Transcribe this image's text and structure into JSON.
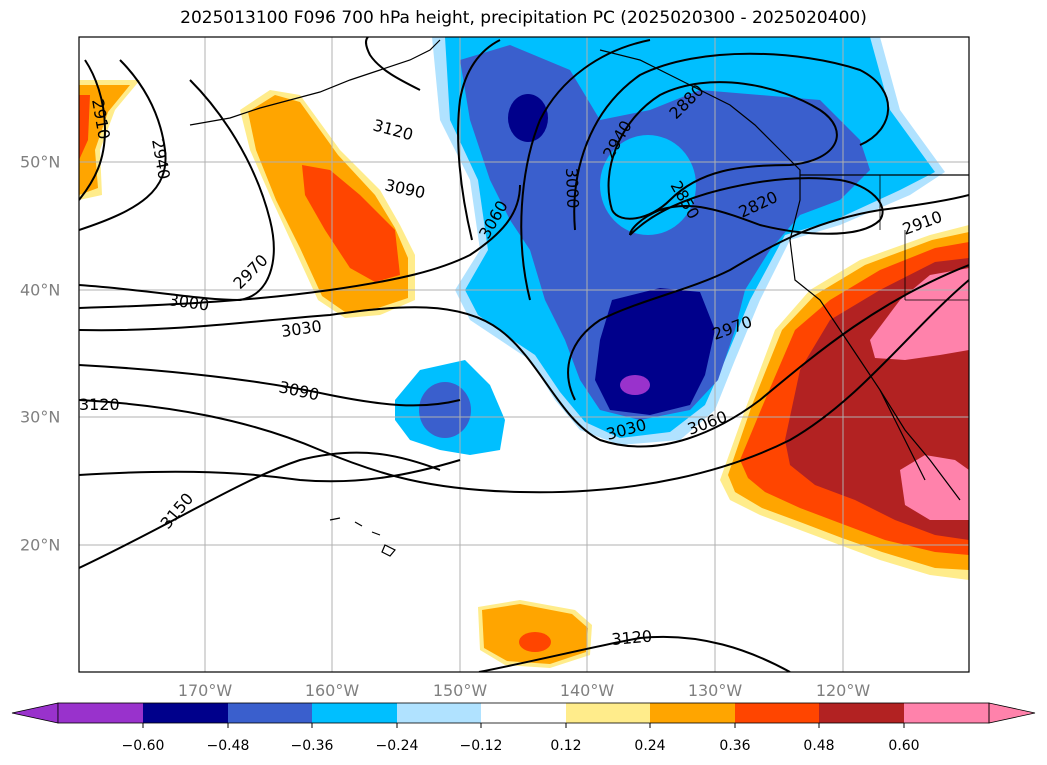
{
  "title": "2025013100 F096 700 hPa height, precipitation PC (2025020300 - 2025020400)",
  "map": {
    "lon_labels": [
      "170°W",
      "160°W",
      "150°W",
      "140°W",
      "130°W",
      "120°W"
    ],
    "lat_labels": [
      "50°N",
      "40°N",
      "30°N",
      "20°N"
    ],
    "contour_labels": [
      "2910",
      "2940",
      "3120",
      "3090",
      "3060",
      "3000",
      "2940",
      "2880",
      "2850",
      "2820",
      "2910",
      "2970",
      "3000",
      "3030",
      "2970",
      "3090",
      "3120",
      "3030",
      "3060",
      "3150",
      "3120"
    ]
  },
  "colorbar": {
    "ticks": [
      "−0.60",
      "−0.48",
      "−0.36",
      "−0.24",
      "−0.12",
      "0.12",
      "0.24",
      "0.36",
      "0.48",
      "0.60"
    ],
    "colors": [
      "#9932cc",
      "#00008b",
      "#3a5fcd",
      "#00bfff",
      "#b0e2ff",
      "#ffffff",
      "#ffec8b",
      "#ffa500",
      "#ff4500",
      "#b22222",
      "#ff82ab"
    ]
  }
}
